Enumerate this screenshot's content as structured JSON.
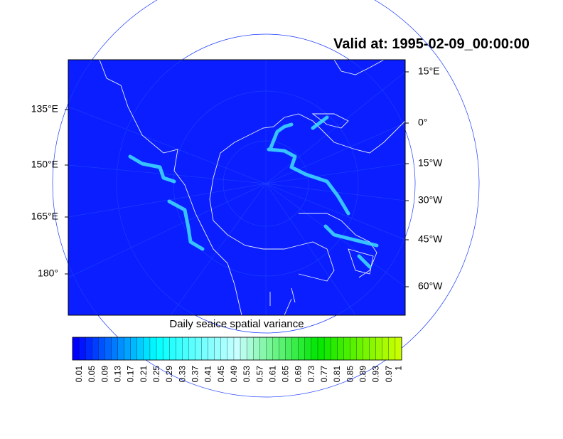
{
  "title": "Valid at: 1995-02-09_00:00:00",
  "left_labels": [
    "135°E",
    "150°E",
    "165°E",
    "180°"
  ],
  "right_labels": [
    "15°E",
    "0°",
    "15°W",
    "30°W",
    "45°W",
    "60°W"
  ],
  "colorbar": {
    "title": "Daily seaice spatial variance",
    "labels": [
      "0.01",
      "0.05",
      "0.09",
      "0.13",
      "0.17",
      "0.21",
      "0.25",
      "0.29",
      "0.33",
      "0.37",
      "0.41",
      "0.45",
      "0.49",
      "0.53",
      "0.57",
      "0.61",
      "0.65",
      "0.69",
      "0.73",
      "0.77",
      "0.81",
      "0.85",
      "0.89",
      "0.93",
      "0.97",
      "1"
    ]
  }
}
